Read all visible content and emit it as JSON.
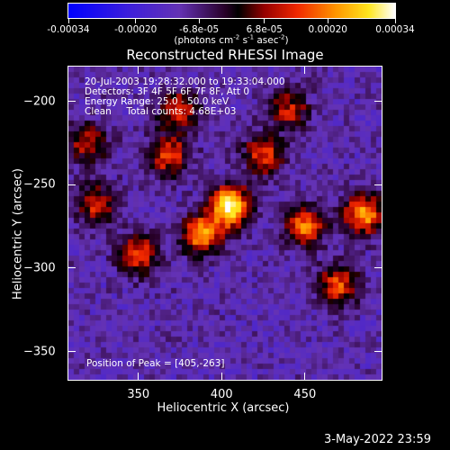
{
  "colorbar": {
    "ticks": [
      {
        "label": "-0.00034",
        "value": -0.00034
      },
      {
        "label": "-0.00020",
        "value": -0.0002
      },
      {
        "label": "-6.8e-05",
        "value": -6.8e-05
      },
      {
        "label": "6.8e-05",
        "value": 6.8e-05
      },
      {
        "label": "0.00020",
        "value": 0.0002
      },
      {
        "label": "0.00034",
        "value": 0.00034
      }
    ],
    "unit_prefix": "(photons cm",
    "unit_exp1": "-2",
    "unit_mid1": " s",
    "unit_exp2": "-1",
    "unit_mid2": " asec",
    "unit_exp3": "-2",
    "unit_suffix": ")",
    "range": [
      -0.00034,
      0.00034
    ]
  },
  "chart_data": {
    "type": "heatmap",
    "title": "Reconstructed RHESSI Image",
    "xlabel": "Heliocentric X (arcsec)",
    "ylabel": "Heliocentric Y (arcsec)",
    "xlim": [
      308,
      496
    ],
    "ylim": [
      -367,
      -179
    ],
    "xticks": [
      350,
      400,
      450
    ],
    "yticks": [
      -200,
      -250,
      -300,
      -350
    ],
    "colormap": "rainbow-like: blue, purple, red, orange, yellow, white",
    "peak_position": [
      405,
      -263
    ],
    "value_range": [
      -0.00034,
      0.00034
    ],
    "grid": false,
    "bright_regions": [
      {
        "x": 405,
        "y": -263,
        "value": 0.00034
      },
      {
        "x": 388,
        "y": -280,
        "value": 0.00022
      },
      {
        "x": 368,
        "y": -232,
        "value": 0.00016
      },
      {
        "x": 350,
        "y": -292,
        "value": 0.00015
      },
      {
        "x": 425,
        "y": -232,
        "value": 0.00014
      },
      {
        "x": 450,
        "y": -275,
        "value": 0.00018
      },
      {
        "x": 485,
        "y": -268,
        "value": 0.00022
      },
      {
        "x": 470,
        "y": -310,
        "value": 0.00016
      },
      {
        "x": 375,
        "y": -205,
        "value": 0.00012
      },
      {
        "x": 320,
        "y": -225,
        "value": 0.0001
      },
      {
        "x": 440,
        "y": -205,
        "value": 0.00011
      },
      {
        "x": 325,
        "y": -262,
        "value": 0.00011
      }
    ]
  },
  "annotations": {
    "time_range": "20-Jul-2003 19:28:32.000 to 19:33:04.000",
    "detectors": "Detectors: 3F 4F 5F 6F 7F 8F, Att 0",
    "energy": "Energy Range: 25.0 - 50.0 keV",
    "clean_total": "Clean     Total counts: 4.68E+03",
    "peak": "Position of Peak = [405,-263]"
  },
  "timestamp": "3-May-2022 23:59"
}
